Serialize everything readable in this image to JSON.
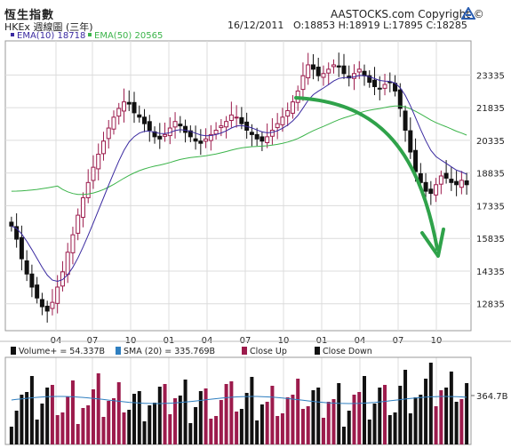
{
  "header": {
    "title": "恆生指數",
    "subtitle": "HKEx  週線圖 (三年)",
    "date": "16/12/2011",
    "ohlc": "O:18853  H:18919  L:17895  C:18285",
    "brand": "AASTOCKS.com Copyright ©"
  },
  "legend": {
    "ema10": "EMA(10) 18718",
    "ema50": "EMA(50) 20565",
    "volume": "Volume+ = 54.337B",
    "sma": "SMA (20) = 335.769B",
    "close_up": "Close Up",
    "close_down": "Close Down"
  },
  "colors": {
    "up": "#9c1b4c",
    "down": "#111111",
    "ema10": "#3a2aa0",
    "ema50": "#3bb44a",
    "sma": "#2f7fc0",
    "arrow": "#2fa24a",
    "grid": "#dcdcdc"
  },
  "chart_data": [
    {
      "type": "candlestick",
      "title": "恆生指數",
      "y_ticks": [
        12835,
        14335,
        15835,
        17335,
        18835,
        20335,
        21835,
        23335
      ],
      "x_ticks": [
        "04",
        "07",
        "10",
        "01",
        "04",
        "07",
        "10",
        "01",
        "04",
        "07",
        "10"
      ],
      "ylim": [
        11600,
        24900
      ],
      "grid": true,
      "annotation": "downward curved arrow",
      "close_series": [
        16400,
        15800,
        14900,
        14200,
        13600,
        13100,
        12700,
        12500,
        12900,
        13600,
        14300,
        15200,
        16000,
        16900,
        17700,
        18400,
        19100,
        19700,
        20300,
        20900,
        21400,
        21800,
        22100,
        22000,
        21600,
        21400,
        21100,
        20800,
        20500,
        20400,
        20600,
        20900,
        21200,
        21000,
        20700,
        20500,
        20300,
        20200,
        20400,
        20600,
        20800,
        21000,
        21200,
        21500,
        21400,
        21100,
        20800,
        20600,
        20400,
        20300,
        20500,
        20800,
        21100,
        21400,
        21700,
        22100,
        22600,
        23300,
        23800,
        23600,
        23300,
        23400,
        23600,
        23800,
        23700,
        23400,
        23200,
        23400,
        23600,
        23300,
        23000,
        22800,
        22700,
        22900,
        23000,
        22600,
        21800,
        20800,
        19800,
        18900,
        18400,
        18000,
        17900,
        18300,
        18700,
        18600,
        18400,
        18300,
        18500,
        18300
      ],
      "ema10_last": 18718,
      "ema50_last": 20565
    },
    {
      "type": "bar",
      "title": "Volume",
      "y_ticks": [
        "364.7B"
      ],
      "volume_last": "54.337B",
      "sma20_last": "335.769B"
    }
  ]
}
